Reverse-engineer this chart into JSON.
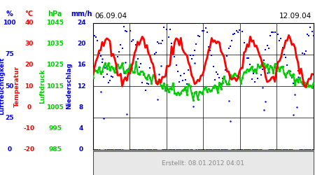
{
  "title_left": "06.09.04",
  "title_right": "12.09.04",
  "footer": "Erstellt: 08.01.2012 04:01",
  "bg_color": "#ffffff",
  "plot_bg_color": "#ffffff",
  "hum_unit": "%",
  "temp_unit": "°C",
  "pressure_unit": "hPa",
  "rain_unit": "mm/h",
  "hum_vals": [
    100,
    75,
    50,
    25,
    0
  ],
  "temp_vals": [
    40,
    30,
    20,
    10,
    0,
    -10,
    -20
  ],
  "pressure_vals": [
    1045,
    1035,
    1025,
    1015,
    1005,
    995,
    985
  ],
  "rain_vals": [
    24,
    20,
    16,
    12,
    8,
    4,
    0
  ],
  "hum_label": "Luftfeuchtigkeit",
  "temp_label": "Temperatur",
  "pressure_label": "Luftdruck",
  "rain_label": "Niederschlag",
  "humidity_color": "#0000ff",
  "temperature_color": "#ff0000",
  "pressure_color": "#00cc00",
  "rain_color": "#0000cc",
  "grid_color": "#000000",
  "n_points": 144,
  "temp_min": -20,
  "temp_max": 40,
  "pressure_min": 985,
  "pressure_max": 1045,
  "rain_max": 24,
  "hum_ylim_min": 0,
  "hum_ylim_max": 100
}
